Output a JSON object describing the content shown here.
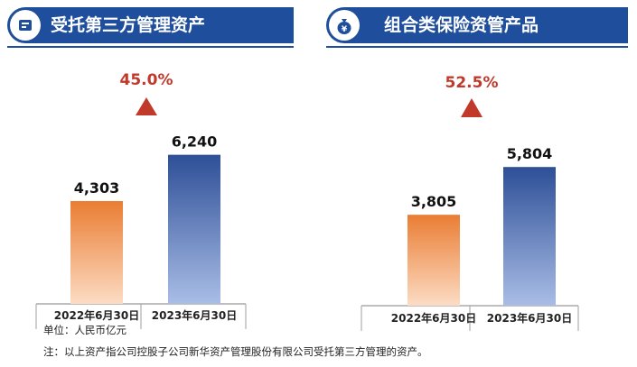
{
  "colors": {
    "banner_blue": "#1f4e9c",
    "growth_red": "#c0392b",
    "orange_top": "#ea7d33",
    "orange_bottom": "#fcdcc4",
    "blue_top": "#2e4f97",
    "blue_bottom": "#a9bde6"
  },
  "chart_data": [
    {
      "type": "bar",
      "title": "受托第三方管理资产",
      "icon": "document-icon",
      "categories": [
        "2022年6月30日",
        "2023年6月30日"
      ],
      "values": [
        4303,
        6240
      ],
      "value_labels": [
        "4,303",
        "6,240"
      ],
      "growth_label": "45.0%",
      "unit": "人民币亿元",
      "ylim": [
        0,
        7000
      ]
    },
    {
      "type": "bar",
      "title": "组合类保险资管产品",
      "icon": "money-bag-icon",
      "categories": [
        "2022年6月30日",
        "2023年6月30日"
      ],
      "values": [
        3805,
        5804
      ],
      "value_labels": [
        "3,805",
        "5,804"
      ],
      "growth_label": "52.5%",
      "unit": "人民币亿元",
      "ylim": [
        0,
        7000
      ]
    }
  ],
  "notes": {
    "unit_text": "单位：人民币亿元",
    "footnote_text": "注：以上资产指公司控股子公司新华资产管理股份有限公司受托第三方管理的资产。"
  }
}
